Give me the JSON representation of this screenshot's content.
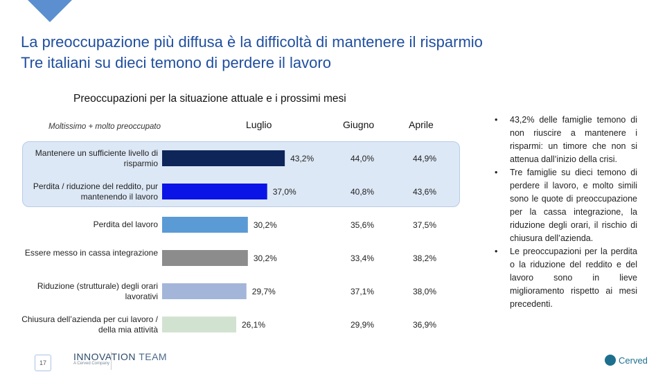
{
  "title": {
    "line1": "La preoccupazione più diffusa è la difficoltà di mantenere il risparmio",
    "line2": "Tre italiani su dieci temono di perdere il lavoro"
  },
  "chart_data": {
    "type": "bar",
    "title": "Preoccupazioni per la situazione attuale e i prossimi mesi",
    "legend": "Moltissimo + molto preoccupato",
    "columns": [
      "Luglio",
      "Giugno",
      "Aprile"
    ],
    "categories": [
      "Mantenere un sufficiente livello di risparmio",
      "Perdita / riduzione del reddito, pur mantenendo il lavoro",
      "Perdita del lavoro",
      "Essere messo in cassa integrazione",
      "Riduzione (strutturale) degli orari lavorativi",
      "Chiusura dell’azienda per cui lavoro / della mia attività"
    ],
    "series": [
      {
        "name": "Luglio",
        "values": [
          43.2,
          37.0,
          30.2,
          30.2,
          29.7,
          26.1
        ],
        "labels": [
          "43,2%",
          "37,0%",
          "30,2%",
          "30,2%",
          "29,7%",
          "26,1%"
        ]
      },
      {
        "name": "Giugno",
        "values": [
          44.0,
          40.8,
          35.6,
          33.4,
          37.1,
          29.9
        ],
        "labels": [
          "44,0%",
          "40,8%",
          "35,6%",
          "33,4%",
          "37,1%",
          "29,9%"
        ]
      },
      {
        "name": "Aprile",
        "values": [
          44.9,
          43.6,
          37.5,
          38.2,
          38.0,
          36.9
        ],
        "labels": [
          "44,9%",
          "43,6%",
          "37,5%",
          "38,2%",
          "38,0%",
          "36,9%"
        ]
      }
    ],
    "bar_colors": [
      "#0d2559",
      "#0a14e6",
      "#5b9bd5",
      "#8c8c8c",
      "#a3b5d9",
      "#d2e2d0"
    ]
  },
  "bullets": [
    "43,2% delle famiglie temono di non riuscire a mantenere i risparmi: un timore che non si attenua dall’inizio della crisi.",
    "Tre famiglie su dieci temono di perdere il lavoro, e molto simili sono le quote di preoccupazione per la cassa integrazione, la riduzione degli orari, il rischio di chiusura dell’azienda.",
    "Le preoccupazioni per la perdita o la riduzione del reddito e del lavoro sono in lieve miglioramento rispetto ai mesi precedenti."
  ],
  "footer": {
    "page": "17",
    "logo_left": "INNOVATION TEAM",
    "logo_left_bold": "INNOVATION",
    "logo_left_light": "TEAM",
    "logo_left_sub": "A Cerved Company",
    "logo_right": "Cerved"
  }
}
